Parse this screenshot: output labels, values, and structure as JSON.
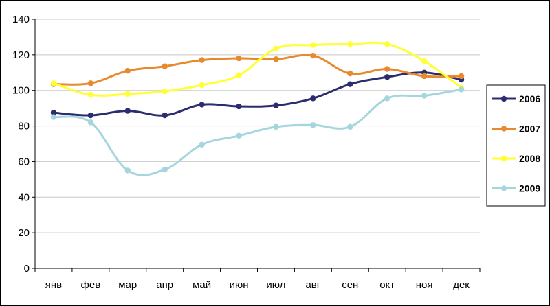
{
  "chart_data": {
    "type": "line",
    "title": "",
    "xlabel": "",
    "ylabel": "",
    "categories": [
      "янв",
      "фев",
      "мар",
      "апр",
      "май",
      "июн",
      "июл",
      "авг",
      "сен",
      "окт",
      "ноя",
      "дек"
    ],
    "ylim": [
      0,
      140
    ],
    "yticks": [
      "0",
      "20",
      "40",
      "60",
      "80",
      "100",
      "120",
      "140"
    ],
    "grid": "horizontal",
    "legend": "right",
    "series": [
      {
        "name": "2006",
        "color": "#2b2d6e",
        "values": [
          87.5,
          86,
          88.5,
          86,
          92,
          91,
          91.5,
          95.5,
          103.5,
          107.5,
          110,
          106
        ]
      },
      {
        "name": "2007",
        "color": "#e8892b",
        "values": [
          103.5,
          104,
          111,
          113.5,
          117,
          118,
          117.5,
          119.5,
          109.5,
          112,
          108,
          108
        ]
      },
      {
        "name": "2008",
        "color": "#ffff33",
        "values": [
          104,
          97.5,
          98,
          99.5,
          103,
          108.5,
          123.5,
          125.5,
          126,
          126,
          116.5,
          101.5
        ]
      },
      {
        "name": "2009",
        "color": "#a5d6de",
        "values": [
          85,
          82,
          55,
          55.5,
          69.5,
          74.5,
          79.5,
          80.5,
          79.5,
          95.5,
          97,
          100.5
        ]
      }
    ]
  }
}
